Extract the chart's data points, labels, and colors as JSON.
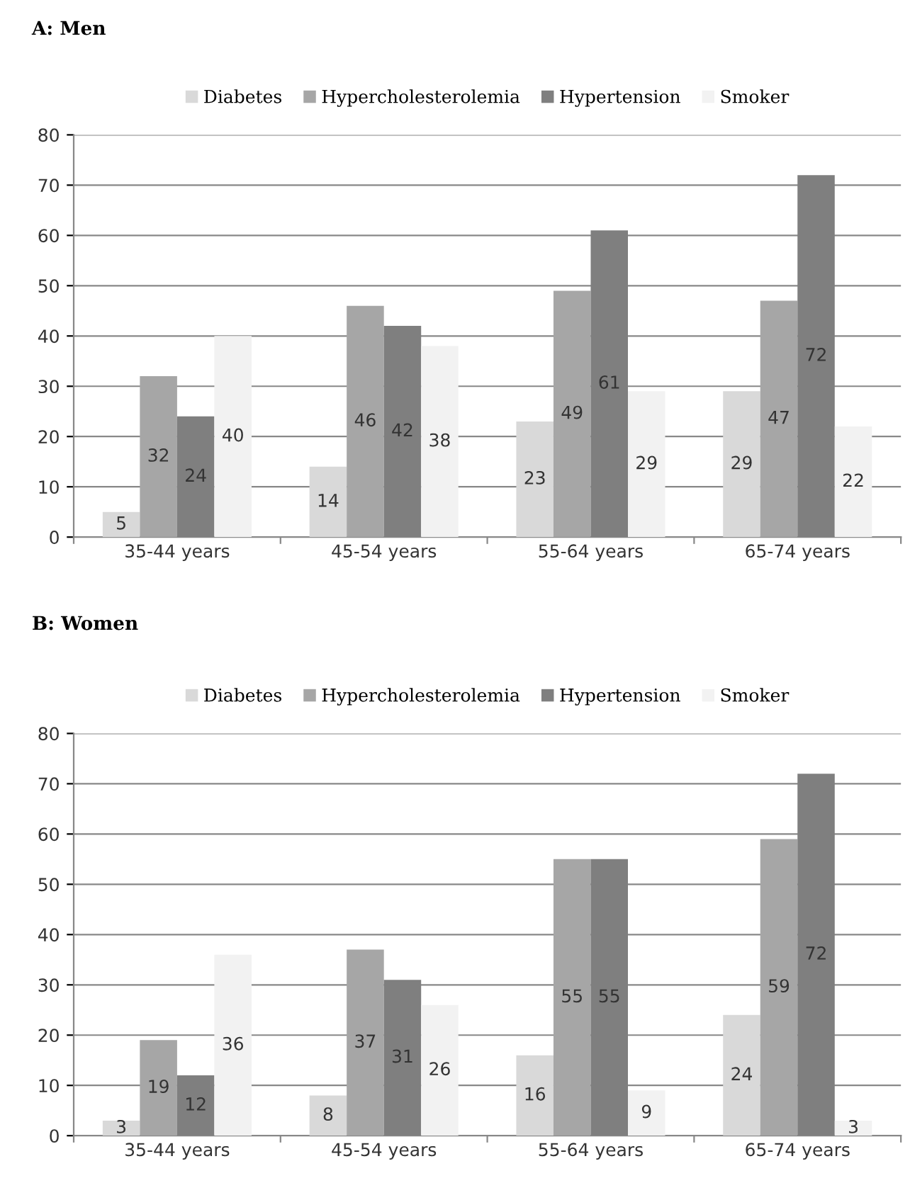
{
  "chart_data": [
    {
      "type": "bar",
      "title": "A: Men",
      "categories": [
        "35-44 years",
        "45-54 years",
        "55-64 years",
        "65-74 years"
      ],
      "series": [
        {
          "name": "Diabetes",
          "color": "#d9d9d9",
          "values": [
            5,
            14,
            23,
            29
          ]
        },
        {
          "name": "Hypercholesterolemia",
          "color": "#a6a6a6",
          "values": [
            32,
            46,
            49,
            47
          ]
        },
        {
          "name": "Hypertension",
          "color": "#7f7f7f",
          "values": [
            24,
            42,
            61,
            72
          ]
        },
        {
          "name": "Smoker",
          "color": "#f2f2f2",
          "values": [
            40,
            38,
            29,
            22
          ]
        }
      ],
      "ylim": [
        0,
        80
      ],
      "yticks": [
        0,
        10,
        20,
        30,
        40,
        50,
        60,
        70,
        80
      ],
      "grid": "y",
      "legend": "top",
      "data_labels": true
    },
    {
      "type": "bar",
      "title": "B: Women",
      "categories": [
        "35-44 years",
        "45-54 years",
        "55-64 years",
        "65-74 years"
      ],
      "series": [
        {
          "name": "Diabetes",
          "color": "#d9d9d9",
          "values": [
            3,
            8,
            16,
            24
          ]
        },
        {
          "name": "Hypercholesterolemia",
          "color": "#a6a6a6",
          "values": [
            19,
            37,
            55,
            59
          ]
        },
        {
          "name": "Hypertension",
          "color": "#7f7f7f",
          "values": [
            12,
            31,
            55,
            72
          ]
        },
        {
          "name": "Smoker",
          "color": "#f2f2f2",
          "values": [
            36,
            26,
            9,
            3
          ]
        }
      ],
      "ylim": [
        0,
        80
      ],
      "yticks": [
        0,
        10,
        20,
        30,
        40,
        50,
        60,
        70,
        80
      ],
      "grid": "y",
      "legend": "top",
      "data_labels": true
    }
  ]
}
